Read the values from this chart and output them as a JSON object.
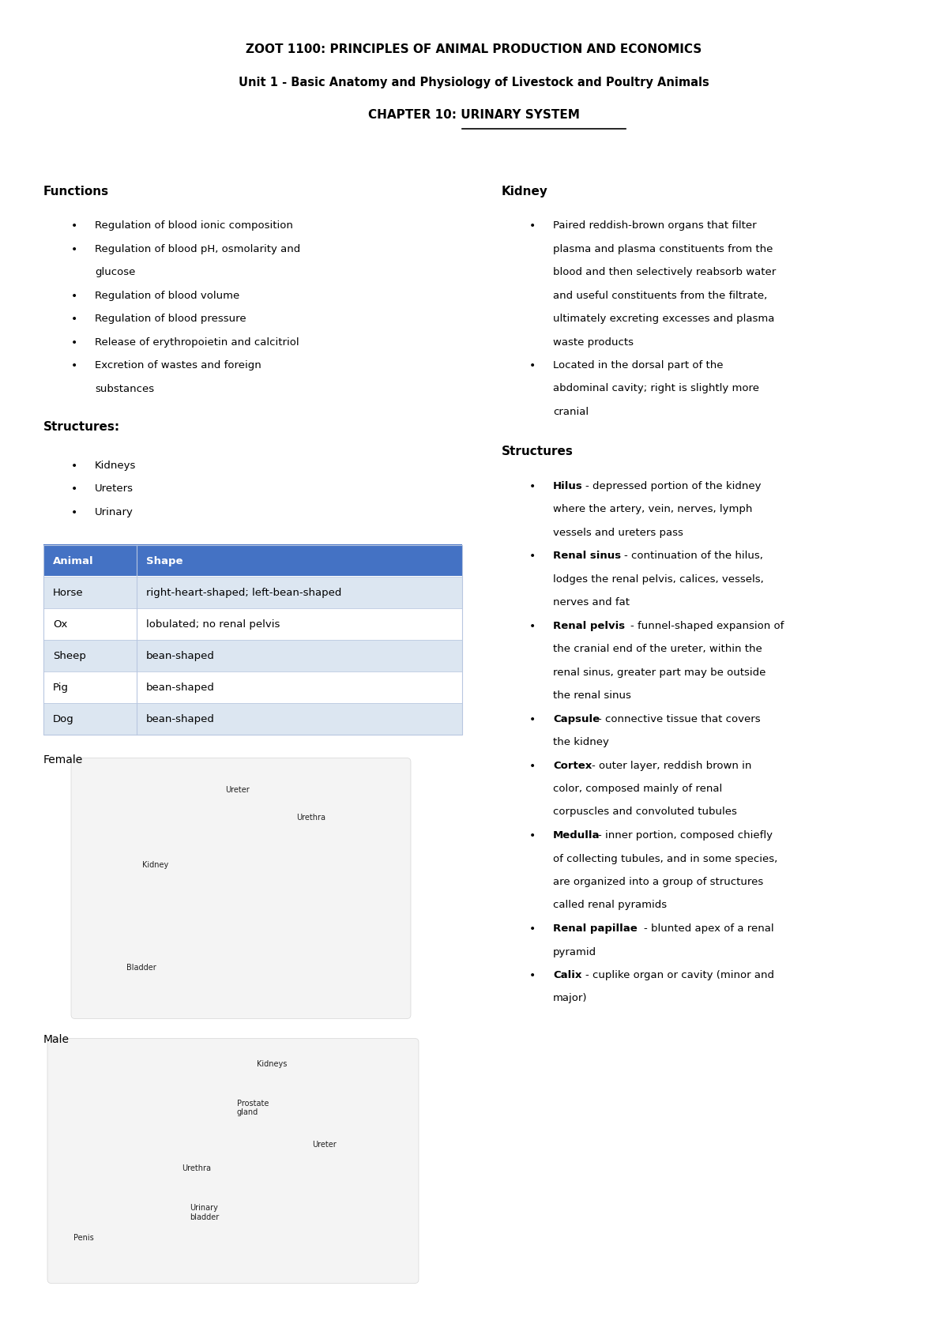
{
  "title_line1": "ZOOT 1100: PRINCIPLES OF ANIMAL PRODUCTION AND ECONOMICS",
  "title_line2": "Unit 1 - Basic Anatomy and Physiology of Livestock and Poultry Animals",
  "title_line3": "CHAPTER 10: URINARY SYSTEM",
  "bg_color": "#ffffff",
  "functions_header": "Functions",
  "functions_bullets": [
    "Regulation of blood ionic composition",
    "Regulation of blood pH, osmolarity and\nglucose",
    "Regulation of blood volume",
    "Regulation of blood pressure",
    "Release of erythropoietin and calcitriol",
    "Excretion of wastes and foreign\nsubstances"
  ],
  "structures_header": "Structures:",
  "structures_bullets": [
    "Kidneys",
    "Ureters",
    "Urinary"
  ],
  "table_header": [
    "Animal",
    "Shape"
  ],
  "table_header_bg": "#4472C4",
  "table_header_color": "#ffffff",
  "table_rows": [
    [
      "Horse",
      "right-heart-shaped; left-bean-shaped"
    ],
    [
      "Ox",
      "lobulated; no renal pelvis"
    ],
    [
      "Sheep",
      "bean-shaped"
    ],
    [
      "Pig",
      "bean-shaped"
    ],
    [
      "Dog",
      "bean-shaped"
    ]
  ],
  "table_row_bg_odd": "#ffffff",
  "table_row_bg_even": "#dce6f1",
  "table_border_color": "#b8c7e0",
  "kidney_header": "Kidney",
  "kidney_bullets": [
    "Paired reddish-brown organs that filter\nplasma and plasma constituents from the\nblood and then selectively reabsorb water\nand useful constituents from the filtrate,\nultimately excreting excesses and plasma\nwaste products",
    "Located in the dorsal part of the\nabdominal cavity; right is slightly more\ncranial"
  ],
  "kidney_structures_header": "Structures",
  "kidney_structures_bullets": [
    [
      "Hilus",
      "- depressed portion of the kidney\nwhere the artery, vein, nerves, lymph\nvessels and ureters pass"
    ],
    [
      "Renal sinus",
      "- continuation of the hilus,\nlodges the renal pelvis, calices, vessels,\nnerves and fat"
    ],
    [
      "Renal pelvis",
      "- funnel-shaped expansion of\nthe cranial end of the ureter, within the\nrenal sinus, greater part may be outside\nthe renal sinus"
    ],
    [
      "Capsule",
      "- connective tissue that covers\nthe kidney"
    ],
    [
      "Cortex",
      "- outer layer, reddish brown in\ncolor, composed mainly of renal\ncorpuscles and convoluted tubules"
    ],
    [
      "Medulla",
      "- inner portion, composed chiefly\nof collecting tubules, and in some species,\nare organized into a group of structures\ncalled renal pyramids"
    ],
    [
      "Renal papillae",
      "- blunted apex of a renal\npyramid"
    ],
    [
      "Calix",
      "- cuplike organ or cavity (minor and\nmajor)"
    ]
  ],
  "female_label": "Female",
  "male_label": "Male",
  "female_img_labels": [
    "Ureter",
    "Urethra",
    "Kidney",
    "Bladder"
  ],
  "male_img_labels": [
    "Kidneys",
    "Prostate\ngland",
    "Ureter",
    "Urethra",
    "Urinary\nbladder",
    "Penis"
  ]
}
